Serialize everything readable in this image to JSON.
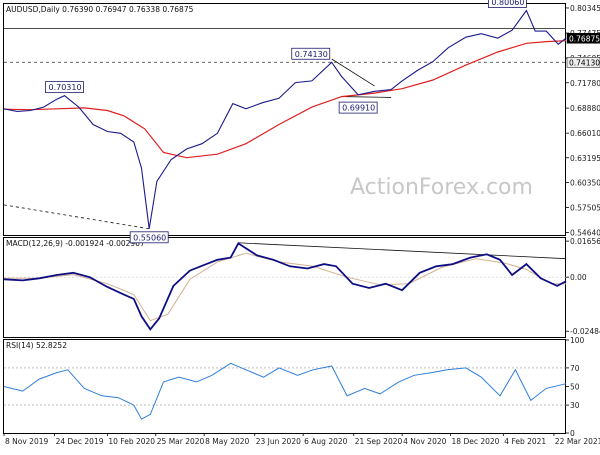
{
  "chart_data": [
    {
      "type": "candlestick",
      "panel": "price",
      "title": "AUDUSD,Daily  0.76390 0.76947 0.76338 0.76875",
      "instrument": "AUDUSD",
      "timeframe": "Daily",
      "ohlc": {
        "open": 0.7639,
        "high": 0.76947,
        "low": 0.76338,
        "close": 0.76875
      },
      "ylim": [
        0.5435,
        0.808
      ],
      "y_ticks": [
        "0.80345",
        "0.77475",
        "0.74605",
        "0.71780",
        "0.68880",
        "0.66010",
        "0.63195",
        "0.60350",
        "0.57505",
        "0.54640"
      ],
      "y_tick_values": [
        0.80345,
        0.77475,
        0.74605,
        0.7178,
        0.6888,
        0.6601,
        0.63195,
        0.6035,
        0.57505,
        0.5464
      ],
      "price_badges": [
        {
          "label": "0.76875",
          "value": 0.76875,
          "style": "dark"
        },
        {
          "label": "0.74130",
          "value": 0.7413,
          "style": "light"
        }
      ],
      "annotations": [
        {
          "label": "0.70310",
          "x": "2020-01-02",
          "value": 0.7031
        },
        {
          "label": "0.55060",
          "x": "2020-03-19",
          "value": 0.5506
        },
        {
          "label": "0.74130",
          "x": "2020-09-01",
          "value": 0.7413
        },
        {
          "label": "0.69910",
          "x": "2020-09-25",
          "value": 0.6991
        },
        {
          "label": "0.80060",
          "x": "2021-02-25",
          "value": 0.8006
        }
      ],
      "series": [
        {
          "type": "price",
          "x": [
            "2019-11-08",
            "2019-11-20",
            "2019-12-02",
            "2019-12-14",
            "2019-12-26",
            "2020-01-02",
            "2020-01-15",
            "2020-01-28",
            "2020-02-10",
            "2020-02-22",
            "2020-03-05",
            "2020-03-12",
            "2020-03-19",
            "2020-03-26",
            "2020-04-08",
            "2020-04-22",
            "2020-05-06",
            "2020-05-20",
            "2020-06-03",
            "2020-06-15",
            "2020-06-30",
            "2020-07-15",
            "2020-07-30",
            "2020-08-14",
            "2020-09-01",
            "2020-09-10",
            "2020-09-25",
            "2020-10-10",
            "2020-10-25",
            "2020-11-04",
            "2020-11-18",
            "2020-12-02",
            "2020-12-16",
            "2021-01-01",
            "2021-01-15",
            "2021-01-30",
            "2021-02-12",
            "2021-02-25",
            "2021-03-05",
            "2021-03-15",
            "2021-03-26",
            "2021-04-02"
          ],
          "values": [
            0.688,
            0.685,
            0.686,
            0.69,
            0.699,
            0.703,
            0.69,
            0.67,
            0.662,
            0.66,
            0.65,
            0.62,
            0.5506,
            0.605,
            0.63,
            0.642,
            0.648,
            0.66,
            0.694,
            0.688,
            0.695,
            0.7,
            0.718,
            0.72,
            0.7413,
            0.725,
            0.704,
            0.708,
            0.71,
            0.72,
            0.732,
            0.742,
            0.758,
            0.77,
            0.774,
            0.769,
            0.778,
            0.8006,
            0.777,
            0.777,
            0.762,
            0.7688
          ]
        },
        {
          "type": "moving-average",
          "x": [
            "2019-11-08",
            "2019-12-02",
            "2019-12-26",
            "2020-01-20",
            "2020-02-10",
            "2020-02-25",
            "2020-03-15",
            "2020-04-01",
            "2020-04-22",
            "2020-05-20",
            "2020-06-15",
            "2020-07-15",
            "2020-08-14",
            "2020-09-10",
            "2020-10-10",
            "2020-11-04",
            "2020-12-02",
            "2021-01-01",
            "2021-01-30",
            "2021-02-25",
            "2021-03-15",
            "2021-04-02"
          ],
          "values": [
            0.6875,
            0.687,
            0.688,
            0.689,
            0.686,
            0.68,
            0.665,
            0.638,
            0.632,
            0.636,
            0.648,
            0.67,
            0.69,
            0.702,
            0.706,
            0.711,
            0.721,
            0.738,
            0.753,
            0.763,
            0.765,
            0.766
          ]
        }
      ],
      "trendlines": [
        {
          "from": [
            "2019-11-08",
            0.578
          ],
          "to": [
            "2020-03-19",
            0.5506
          ],
          "style": "dashed"
        },
        {
          "from": [
            "2020-09-01",
            0.745
          ],
          "to": [
            "2020-10-10",
            0.714
          ],
          "style": "solid"
        },
        {
          "from": [
            "2020-09-10",
            0.702
          ],
          "to": [
            "2020-10-25",
            0.701
          ],
          "style": "solid"
        }
      ],
      "hlines": [
        {
          "value": 0.78,
          "style": "solid"
        },
        {
          "value": 0.7413,
          "style": "dashed"
        }
      ]
    },
    {
      "type": "line",
      "panel": "macd",
      "title": "MACD(12,26,9) -0.001924 -0.002967",
      "macd_value": -0.001924,
      "signal_value": -0.002967,
      "ylim": [
        -0.0275,
        0.018
      ],
      "y_ticks": [
        "0.016567",
        "0.00",
        "-0.02484"
      ],
      "y_tick_values": [
        0.016567,
        0.0,
        -0.02484
      ],
      "series": [
        {
          "type": "macd",
          "x": [
            "2019-11-08",
            "2019-11-25",
            "2019-12-10",
            "2019-12-26",
            "2020-01-10",
            "2020-01-25",
            "2020-02-10",
            "2020-02-25",
            "2020-03-05",
            "2020-03-12",
            "2020-03-20",
            "2020-03-28",
            "2020-04-10",
            "2020-04-25",
            "2020-05-10",
            "2020-05-20",
            "2020-06-01",
            "2020-06-08",
            "2020-06-25",
            "2020-07-10",
            "2020-07-25",
            "2020-08-10",
            "2020-08-25",
            "2020-09-05",
            "2020-09-20",
            "2020-10-05",
            "2020-10-20",
            "2020-11-04",
            "2020-11-20",
            "2020-12-05",
            "2020-12-20",
            "2021-01-05",
            "2021-01-20",
            "2021-02-01",
            "2021-02-12",
            "2021-02-25",
            "2021-03-10",
            "2021-03-25",
            "2021-04-02"
          ],
          "values": [
            -0.001,
            -0.0015,
            -0.0005,
            0.001,
            0.002,
            0.0,
            -0.0045,
            -0.008,
            -0.01,
            -0.018,
            -0.024,
            -0.019,
            -0.004,
            0.003,
            0.006,
            0.008,
            0.009,
            0.0155,
            0.01,
            0.008,
            0.005,
            0.004,
            0.006,
            0.005,
            -0.003,
            -0.005,
            -0.003,
            -0.006,
            0.002,
            0.005,
            0.006,
            0.009,
            0.0105,
            0.008,
            0.001,
            0.006,
            -0.0005,
            -0.004,
            -0.0019
          ]
        },
        {
          "type": "signal",
          "x": [
            "2019-11-08",
            "2019-12-10",
            "2020-01-10",
            "2020-02-10",
            "2020-03-05",
            "2020-03-20",
            "2020-04-05",
            "2020-04-25",
            "2020-05-20",
            "2020-06-15",
            "2020-07-15",
            "2020-08-15",
            "2020-09-15",
            "2020-10-15",
            "2020-11-10",
            "2020-12-10",
            "2021-01-10",
            "2021-02-05",
            "2021-02-25",
            "2021-03-20",
            "2021-04-02"
          ],
          "values": [
            -0.0005,
            -0.0005,
            0.0012,
            -0.003,
            -0.008,
            -0.02,
            -0.017,
            -0.001,
            0.007,
            0.011,
            0.007,
            0.005,
            0.0,
            -0.0035,
            -0.003,
            0.0045,
            0.0085,
            0.0065,
            0.0035,
            -0.003,
            -0.003
          ]
        }
      ],
      "trendlines": [
        {
          "from": [
            "2020-06-08",
            0.0158
          ],
          "to": [
            "2021-04-02",
            0.0085
          ],
          "style": "solid"
        }
      ]
    },
    {
      "type": "line",
      "panel": "rsi",
      "title": "RSI(14) 52.8252",
      "rsi_value": 52.8252,
      "ylim": [
        0,
        100
      ],
      "y_ticks": [
        "100",
        "70",
        "50",
        "30",
        "0"
      ],
      "y_tick_values": [
        100,
        70,
        50,
        30,
        0
      ],
      "levels": [
        70,
        30
      ],
      "series": [
        {
          "type": "rsi",
          "x": [
            "2019-11-08",
            "2019-11-25",
            "2019-12-10",
            "2019-12-26",
            "2020-01-05",
            "2020-01-20",
            "2020-02-05",
            "2020-02-20",
            "2020-03-05",
            "2020-03-12",
            "2020-03-20",
            "2020-04-01",
            "2020-04-15",
            "2020-05-01",
            "2020-05-15",
            "2020-06-01",
            "2020-06-15",
            "2020-07-01",
            "2020-07-15",
            "2020-08-01",
            "2020-08-15",
            "2020-09-01",
            "2020-09-15",
            "2020-10-01",
            "2020-10-15",
            "2020-11-01",
            "2020-11-15",
            "2020-12-01",
            "2020-12-15",
            "2021-01-01",
            "2021-01-15",
            "2021-02-01",
            "2021-02-15",
            "2021-03-01",
            "2021-03-15",
            "2021-04-02"
          ],
          "values": [
            50,
            45,
            58,
            65,
            68,
            48,
            40,
            38,
            30,
            15,
            20,
            55,
            60,
            55,
            62,
            75,
            68,
            60,
            70,
            62,
            68,
            72,
            40,
            48,
            42,
            55,
            62,
            65,
            68,
            70,
            60,
            40,
            68,
            35,
            48,
            53
          ]
        }
      ]
    }
  ],
  "x_axis": {
    "ticks": [
      "8 Nov 2019",
      "24 Dec 2019",
      "10 Feb 2020",
      "25 Mar 2020",
      "8 May 2020",
      "23 Jun 2020",
      "6 Aug 2020",
      "21 Sep 2020",
      "4 Nov 2020",
      "18 Dec 2020",
      "4 Feb 2021",
      "22 Mar 2021"
    ],
    "tick_dates": [
      "2019-11-08",
      "2019-12-24",
      "2020-02-10",
      "2020-03-25",
      "2020-05-08",
      "2020-06-23",
      "2020-08-06",
      "2020-09-21",
      "2020-11-04",
      "2020-12-18",
      "2021-02-04",
      "2021-03-22"
    ],
    "range": [
      "2019-11-08",
      "2021-04-02"
    ]
  },
  "watermark": "ActionForex.com",
  "colors": {
    "price": "#1b1b8c",
    "moving_average": "#e02020",
    "macd": "#0e0e85",
    "signal": "#d4b090",
    "rsi": "#2f7fd8",
    "annotation_border": "#1a1a6e",
    "badge_dark": "#000000",
    "grid": "#cccccc"
  }
}
